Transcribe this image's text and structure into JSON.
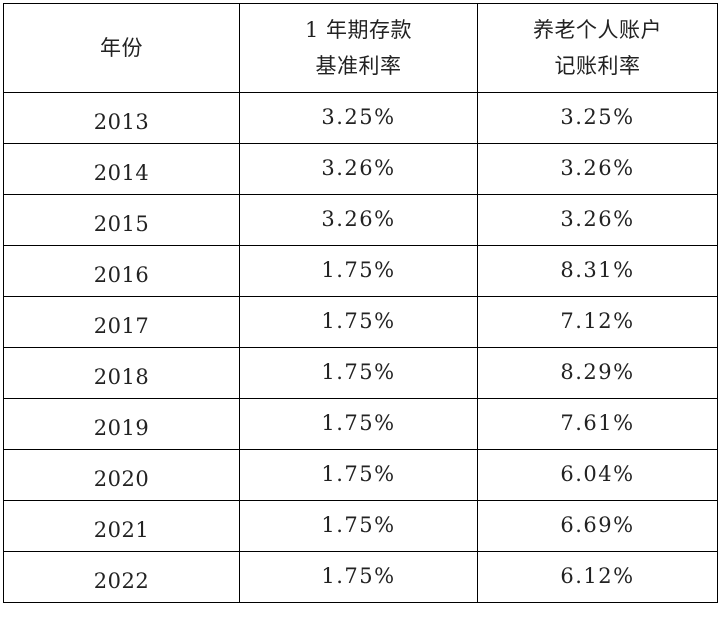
{
  "table": {
    "headers": {
      "year": "年份",
      "deposit_line1": "1 年期存款",
      "deposit_line2": "基准利率",
      "pension_line1": "养老个人账户",
      "pension_line2": "记账利率"
    },
    "rows": [
      {
        "year": "2013",
        "deposit_rate": "3.25%",
        "pension_rate": "3.25%"
      },
      {
        "year": "2014",
        "deposit_rate": "3.26%",
        "pension_rate": "3.26%"
      },
      {
        "year": "2015",
        "deposit_rate": "3.26%",
        "pension_rate": "3.26%"
      },
      {
        "year": "2016",
        "deposit_rate": "1.75%",
        "pension_rate": "8.31%"
      },
      {
        "year": "2017",
        "deposit_rate": "1.75%",
        "pension_rate": "7.12%"
      },
      {
        "year": "2018",
        "deposit_rate": "1.75%",
        "pension_rate": "8.29%"
      },
      {
        "year": "2019",
        "deposit_rate": "1.75%",
        "pension_rate": "7.61%"
      },
      {
        "year": "2020",
        "deposit_rate": "1.75%",
        "pension_rate": "6.04%"
      },
      {
        "year": "2021",
        "deposit_rate": "1.75%",
        "pension_rate": "6.69%"
      },
      {
        "year": "2022",
        "deposit_rate": "1.75%",
        "pension_rate": "6.12%"
      }
    ]
  }
}
